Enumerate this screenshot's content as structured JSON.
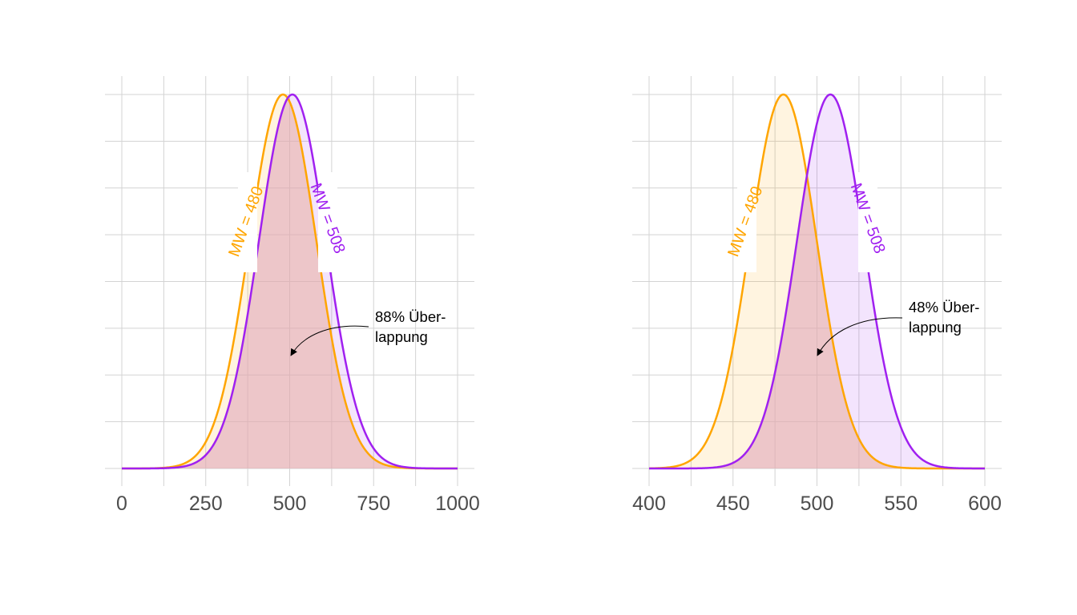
{
  "chart_data": [
    {
      "type": "area",
      "xlim": [
        0,
        1000
      ],
      "x_ticks": [
        0,
        250,
        500,
        750,
        1000
      ],
      "x_tick_labels": [
        "0",
        "250",
        "500",
        "750",
        "1000"
      ],
      "grid": true,
      "series": [
        {
          "label": "MW = 480",
          "mean": 480,
          "sd": 100,
          "color": "#FFA500"
        },
        {
          "label": "MW = 508",
          "mean": 508,
          "sd": 100,
          "color": "#A020F0"
        }
      ],
      "annotation": {
        "lines": [
          "88% Über-",
          "lappung"
        ],
        "overlap_percent": 88
      }
    },
    {
      "type": "area",
      "xlim": [
        400,
        600
      ],
      "x_ticks": [
        400,
        450,
        500,
        550,
        600
      ],
      "x_tick_labels": [
        "400",
        "450",
        "500",
        "550",
        "600"
      ],
      "grid": true,
      "series": [
        {
          "label": "MW = 480",
          "mean": 480,
          "sd": 20,
          "color": "#FFA500"
        },
        {
          "label": "MW = 508",
          "mean": 508,
          "sd": 20,
          "color": "#A020F0"
        }
      ],
      "annotation": {
        "lines": [
          "48% Über-",
          "lappung"
        ],
        "overlap_percent": 48
      }
    }
  ]
}
